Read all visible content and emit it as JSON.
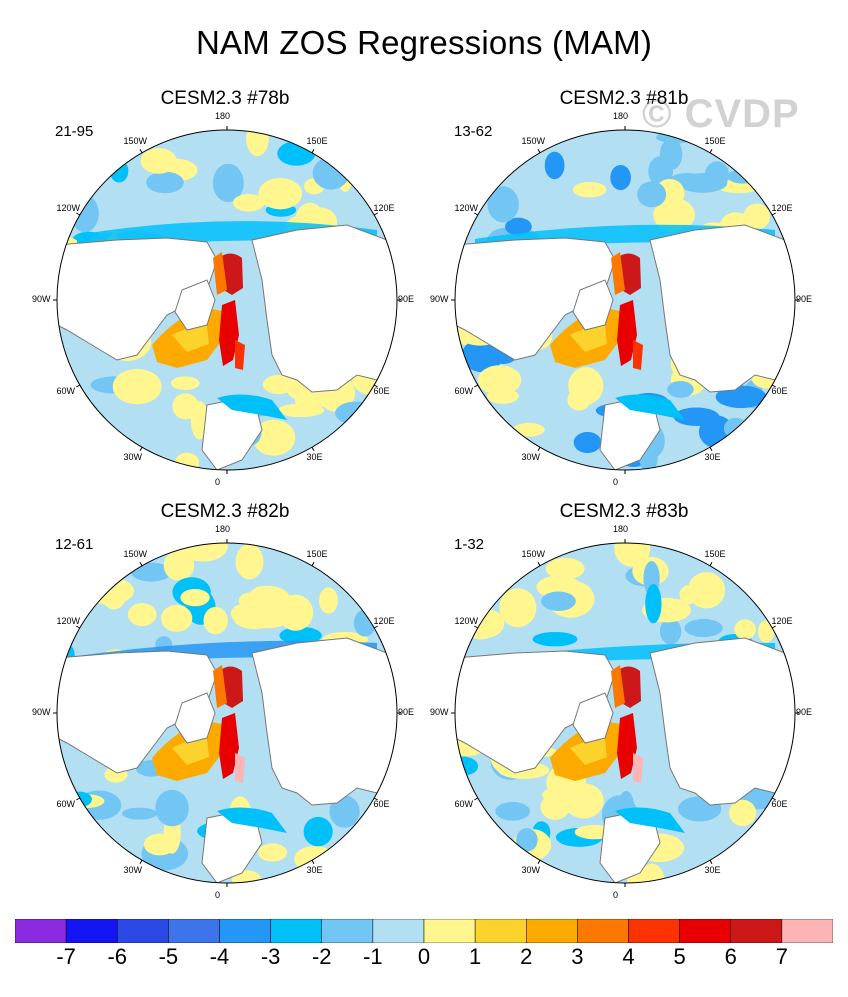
{
  "title": "NAM ZOS Regressions (MAM)",
  "watermark": "© CVDP",
  "panels": [
    {
      "title": "CESM2.3 #78b",
      "range": "21-95"
    },
    {
      "title": "CESM2.3 #81b",
      "range": "13-62"
    },
    {
      "title": "CESM2.3 #82b",
      "range": "12-61"
    },
    {
      "title": "CESM2.3 #83b",
      "range": "1-32"
    }
  ],
  "lon_labels": {
    "n180": "180",
    "e150": "150E",
    "e120": "120E",
    "e90": "90E",
    "e60": "60E",
    "e30": "30E",
    "p0": "0",
    "w30": "30W",
    "w60": "60W",
    "w90": "90W",
    "w120": "120W",
    "w150": "150W"
  },
  "chart_data": {
    "type": "heatmap",
    "projection": "north-polar-stereographic",
    "title": "NAM ZOS Regressions (MAM)",
    "panels": [
      "CESM2.3 #78b",
      "CESM2.3 #81b",
      "CESM2.3 #82b",
      "CESM2.3 #83b"
    ],
    "colorbar": {
      "labels": [
        "-7",
        "-6",
        "-5",
        "-4",
        "-3",
        "-2",
        "-1",
        "0",
        "1",
        "2",
        "3",
        "4",
        "5",
        "6",
        "7"
      ],
      "colors": [
        "#8a2be2",
        "#1414f5",
        "#2c48e6",
        "#3d74ec",
        "#2496f5",
        "#00c0fa",
        "#73c5f3",
        "#b3dff3",
        "#fff68f",
        "#fcd22d",
        "#fcaa00",
        "#fc7800",
        "#fc3200",
        "#e80000",
        "#cc1818",
        "#fcb4b4"
      ]
    }
  }
}
